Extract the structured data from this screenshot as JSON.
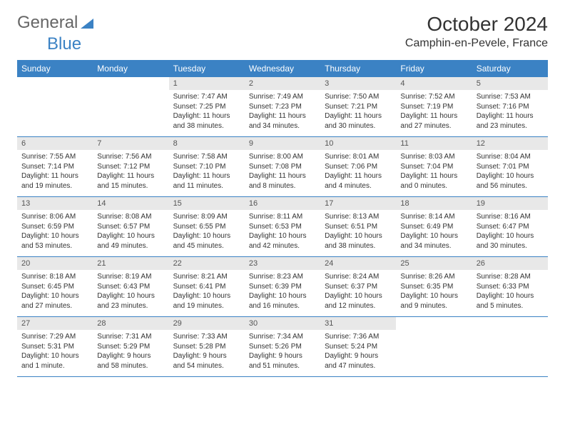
{
  "logo": {
    "part1": "General",
    "part2": "Blue"
  },
  "title": "October 2024",
  "location": "Camphin-en-Pevele, France",
  "colors": {
    "header_bg": "#3b82c4",
    "header_text": "#ffffff",
    "daynum_bg": "#e8e8e8",
    "border": "#3b82c4",
    "logo_gray": "#666666",
    "logo_blue": "#3b82c4"
  },
  "weekdays": [
    "Sunday",
    "Monday",
    "Tuesday",
    "Wednesday",
    "Thursday",
    "Friday",
    "Saturday"
  ],
  "first_weekday_index": 2,
  "days": [
    {
      "n": 1,
      "sunrise": "7:47 AM",
      "sunset": "7:25 PM",
      "daylight": "11 hours and 38 minutes."
    },
    {
      "n": 2,
      "sunrise": "7:49 AM",
      "sunset": "7:23 PM",
      "daylight": "11 hours and 34 minutes."
    },
    {
      "n": 3,
      "sunrise": "7:50 AM",
      "sunset": "7:21 PM",
      "daylight": "11 hours and 30 minutes."
    },
    {
      "n": 4,
      "sunrise": "7:52 AM",
      "sunset": "7:19 PM",
      "daylight": "11 hours and 27 minutes."
    },
    {
      "n": 5,
      "sunrise": "7:53 AM",
      "sunset": "7:16 PM",
      "daylight": "11 hours and 23 minutes."
    },
    {
      "n": 6,
      "sunrise": "7:55 AM",
      "sunset": "7:14 PM",
      "daylight": "11 hours and 19 minutes."
    },
    {
      "n": 7,
      "sunrise": "7:56 AM",
      "sunset": "7:12 PM",
      "daylight": "11 hours and 15 minutes."
    },
    {
      "n": 8,
      "sunrise": "7:58 AM",
      "sunset": "7:10 PM",
      "daylight": "11 hours and 11 minutes."
    },
    {
      "n": 9,
      "sunrise": "8:00 AM",
      "sunset": "7:08 PM",
      "daylight": "11 hours and 8 minutes."
    },
    {
      "n": 10,
      "sunrise": "8:01 AM",
      "sunset": "7:06 PM",
      "daylight": "11 hours and 4 minutes."
    },
    {
      "n": 11,
      "sunrise": "8:03 AM",
      "sunset": "7:04 PM",
      "daylight": "11 hours and 0 minutes."
    },
    {
      "n": 12,
      "sunrise": "8:04 AM",
      "sunset": "7:01 PM",
      "daylight": "10 hours and 56 minutes."
    },
    {
      "n": 13,
      "sunrise": "8:06 AM",
      "sunset": "6:59 PM",
      "daylight": "10 hours and 53 minutes."
    },
    {
      "n": 14,
      "sunrise": "8:08 AM",
      "sunset": "6:57 PM",
      "daylight": "10 hours and 49 minutes."
    },
    {
      "n": 15,
      "sunrise": "8:09 AM",
      "sunset": "6:55 PM",
      "daylight": "10 hours and 45 minutes."
    },
    {
      "n": 16,
      "sunrise": "8:11 AM",
      "sunset": "6:53 PM",
      "daylight": "10 hours and 42 minutes."
    },
    {
      "n": 17,
      "sunrise": "8:13 AM",
      "sunset": "6:51 PM",
      "daylight": "10 hours and 38 minutes."
    },
    {
      "n": 18,
      "sunrise": "8:14 AM",
      "sunset": "6:49 PM",
      "daylight": "10 hours and 34 minutes."
    },
    {
      "n": 19,
      "sunrise": "8:16 AM",
      "sunset": "6:47 PM",
      "daylight": "10 hours and 30 minutes."
    },
    {
      "n": 20,
      "sunrise": "8:18 AM",
      "sunset": "6:45 PM",
      "daylight": "10 hours and 27 minutes."
    },
    {
      "n": 21,
      "sunrise": "8:19 AM",
      "sunset": "6:43 PM",
      "daylight": "10 hours and 23 minutes."
    },
    {
      "n": 22,
      "sunrise": "8:21 AM",
      "sunset": "6:41 PM",
      "daylight": "10 hours and 19 minutes."
    },
    {
      "n": 23,
      "sunrise": "8:23 AM",
      "sunset": "6:39 PM",
      "daylight": "10 hours and 16 minutes."
    },
    {
      "n": 24,
      "sunrise": "8:24 AM",
      "sunset": "6:37 PM",
      "daylight": "10 hours and 12 minutes."
    },
    {
      "n": 25,
      "sunrise": "8:26 AM",
      "sunset": "6:35 PM",
      "daylight": "10 hours and 9 minutes."
    },
    {
      "n": 26,
      "sunrise": "8:28 AM",
      "sunset": "6:33 PM",
      "daylight": "10 hours and 5 minutes."
    },
    {
      "n": 27,
      "sunrise": "7:29 AM",
      "sunset": "5:31 PM",
      "daylight": "10 hours and 1 minute."
    },
    {
      "n": 28,
      "sunrise": "7:31 AM",
      "sunset": "5:29 PM",
      "daylight": "9 hours and 58 minutes."
    },
    {
      "n": 29,
      "sunrise": "7:33 AM",
      "sunset": "5:28 PM",
      "daylight": "9 hours and 54 minutes."
    },
    {
      "n": 30,
      "sunrise": "7:34 AM",
      "sunset": "5:26 PM",
      "daylight": "9 hours and 51 minutes."
    },
    {
      "n": 31,
      "sunrise": "7:36 AM",
      "sunset": "5:24 PM",
      "daylight": "9 hours and 47 minutes."
    }
  ],
  "labels": {
    "sunrise": "Sunrise:",
    "sunset": "Sunset:",
    "daylight": "Daylight:"
  }
}
